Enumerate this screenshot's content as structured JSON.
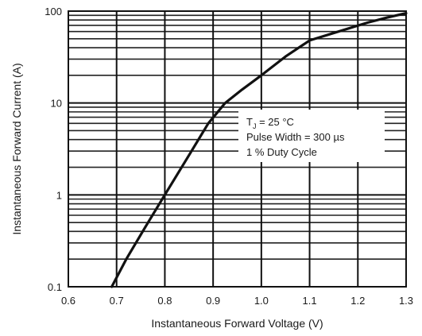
{
  "chart_data": {
    "type": "line",
    "title": "",
    "xlabel": "Instantaneous Forward Voltage (V)",
    "ylabel": "Instantaneous Forward Current (A)",
    "xlim": [
      0.6,
      1.3
    ],
    "ylim": [
      0.1,
      100
    ],
    "y_scale": "log",
    "grid": true,
    "x_ticks": [
      "0.6",
      "0.7",
      "0.8",
      "0.9",
      "1.0",
      "1.1",
      "1.2",
      "1.3"
    ],
    "y_ticks": [
      "0.1",
      "1",
      "10",
      "100"
    ],
    "series": [
      {
        "x": [
          0.69,
          0.72,
          0.76,
          0.8,
          0.85,
          0.89,
          0.925,
          0.96,
          1.0,
          1.05,
          1.1,
          1.16,
          1.22,
          1.26,
          1.3
        ],
        "y": [
          0.1,
          0.2,
          0.45,
          1.0,
          2.7,
          6.0,
          10.0,
          14.0,
          20.0,
          32.0,
          48.0,
          60.0,
          75.0,
          85.0,
          95.0
        ],
        "color": "#111111"
      }
    ],
    "annotation": {
      "line1_main": "T",
      "line1_sub": "J",
      "line1_rest": " = 25 °C",
      "line2": "Pulse Width = 300 µs",
      "line3": "1 % Duty Cycle"
    }
  }
}
